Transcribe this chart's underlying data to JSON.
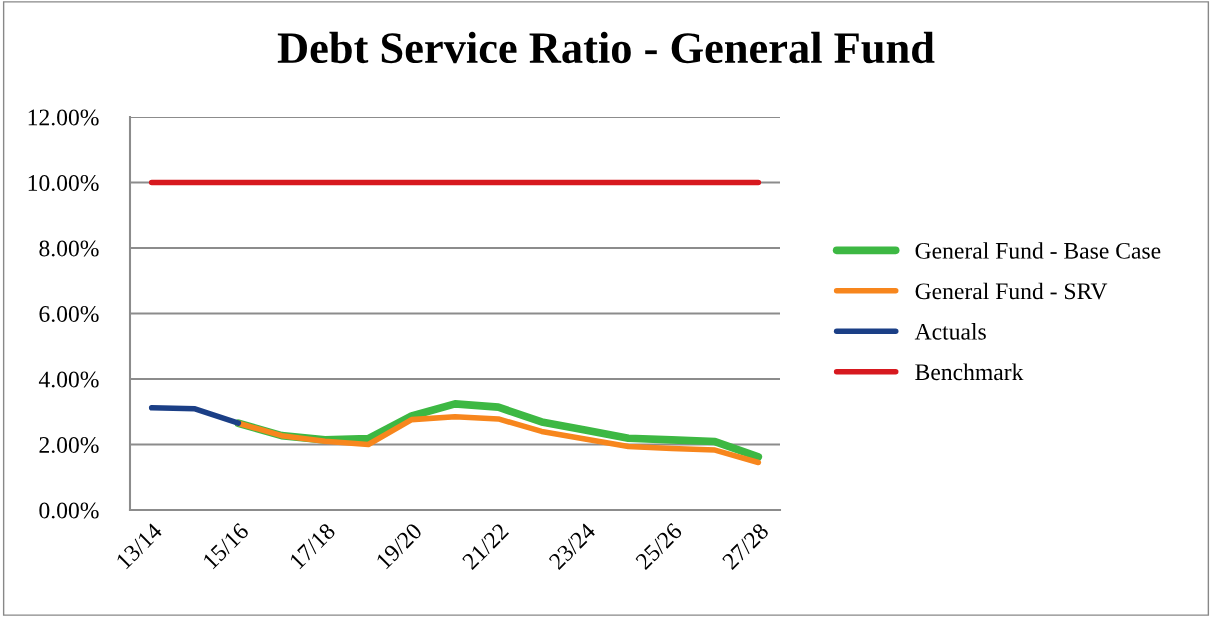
{
  "chart_data": {
    "type": "line",
    "title": "Debt Service Ratio - General Fund",
    "categories": [
      "13/14",
      null,
      "15/16",
      null,
      "17/18",
      null,
      "19/20",
      null,
      "21/22",
      null,
      "23/24",
      null,
      "25/26",
      null,
      "27/28"
    ],
    "series": [
      {
        "name": "General Fund - Base Case",
        "color": "#3db843",
        "values": [
          null,
          null,
          2.65,
          2.27,
          2.14,
          2.18,
          2.87,
          3.24,
          3.14,
          2.69,
          2.44,
          2.19,
          2.14,
          2.09,
          1.62
        ]
      },
      {
        "name": "General Fund - SRV",
        "color": "#f7861d",
        "values": [
          null,
          null,
          2.65,
          2.27,
          2.1,
          2.0,
          2.76,
          2.85,
          2.78,
          2.4,
          2.17,
          1.94,
          1.88,
          1.83,
          1.45
        ]
      },
      {
        "name": "Actuals",
        "color": "#1b3f86",
        "values": [
          3.12,
          3.09,
          2.65,
          null,
          null,
          null,
          null,
          null,
          null,
          null,
          null,
          null,
          null,
          null,
          null
        ]
      },
      {
        "name": "Benchmark",
        "color": "#d7191f",
        "values": [
          10,
          10,
          10,
          10,
          10,
          10,
          10,
          10,
          10,
          10,
          10,
          10,
          10,
          10,
          10
        ]
      }
    ],
    "ylim": [
      0,
      12
    ],
    "yticks": [
      {
        "value": 0,
        "label": "0.00%"
      },
      {
        "value": 2,
        "label": "2.00%"
      },
      {
        "value": 4,
        "label": "4.00%"
      },
      {
        "value": 6,
        "label": "6.00%"
      },
      {
        "value": 8,
        "label": "8.00%"
      },
      {
        "value": 10,
        "label": "10.00%"
      },
      {
        "value": 12,
        "label": "12.00%"
      }
    ],
    "grid": "y",
    "legend": "right",
    "marker": "none",
    "line_style": "solid"
  }
}
